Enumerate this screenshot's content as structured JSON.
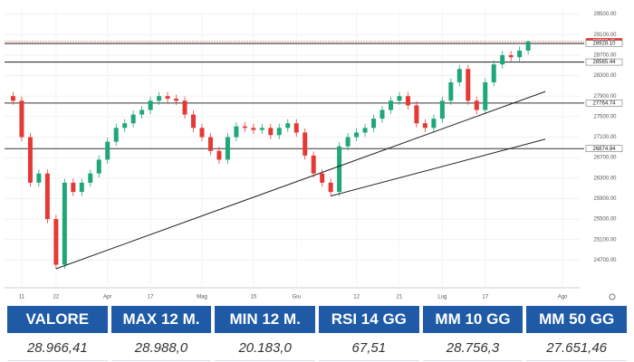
{
  "chart_data": {
    "type": "candlestick",
    "open": [
      27900,
      27810,
      27100,
      26210,
      26390,
      25500,
      24610,
      26210,
      26030,
      26210,
      26390,
      26660,
      27010,
      27280,
      27370,
      27540,
      27630,
      27810,
      27900,
      27850,
      27810,
      27540,
      27280,
      27100,
      26830,
      26660,
      27100,
      27310,
      27280,
      27240,
      27280,
      27140,
      27280,
      27370,
      27190,
      26740,
      26390,
      26210,
      26030,
      26920,
      27100,
      27190,
      27280,
      27460,
      27630,
      27810,
      27900,
      27720,
      27370,
      27280,
      27460,
      27810,
      28170,
      28430,
      27810,
      27630,
      28170,
      28520,
      28700,
      28660,
      28790
    ],
    "high": [
      27980,
      27890,
      27180,
      26470,
      26470,
      25580,
      26290,
      26290,
      26290,
      26470,
      26740,
      27090,
      27360,
      27450,
      27620,
      27710,
      27890,
      27980,
      27980,
      27930,
      27890,
      27620,
      27360,
      27180,
      26910,
      27180,
      27390,
      27390,
      27360,
      27360,
      27360,
      27360,
      27450,
      27450,
      27270,
      26820,
      26470,
      26290,
      27000,
      27180,
      27270,
      27360,
      27540,
      27710,
      27890,
      27980,
      27980,
      27800,
      27450,
      27540,
      27890,
      28250,
      28510,
      28510,
      27890,
      28250,
      28600,
      28780,
      28780,
      28870,
      28988
    ],
    "low": [
      27730,
      27020,
      26130,
      26130,
      25420,
      24530,
      24530,
      25950,
      25950,
      26130,
      26310,
      26580,
      26930,
      27200,
      27290,
      27460,
      27550,
      27730,
      27770,
      27730,
      27460,
      27200,
      27020,
      26750,
      26580,
      26580,
      27020,
      27200,
      27160,
      27160,
      27060,
      27060,
      27200,
      27110,
      26660,
      26310,
      26130,
      25950,
      25950,
      26840,
      27020,
      27110,
      27200,
      27380,
      27550,
      27730,
      27640,
      27290,
      27200,
      27200,
      27380,
      27730,
      28090,
      27730,
      27550,
      27550,
      28090,
      28440,
      28580,
      28580,
      28710
    ],
    "close": [
      27810,
      27100,
      26210,
      26390,
      25500,
      24610,
      26210,
      26030,
      26210,
      26390,
      26660,
      27010,
      27280,
      27370,
      27540,
      27630,
      27810,
      27900,
      27850,
      27810,
      27540,
      27280,
      27100,
      26830,
      26660,
      27100,
      27310,
      27280,
      27240,
      27280,
      27140,
      27280,
      27370,
      27190,
      26740,
      26390,
      26210,
      26030,
      26920,
      27100,
      27190,
      27280,
      27460,
      27630,
      27810,
      27900,
      27720,
      27370,
      27280,
      27460,
      27810,
      28170,
      28430,
      27810,
      27630,
      28170,
      28520,
      28700,
      28660,
      28790,
      28966.41
    ],
    "up_color": "#1fa67a",
    "down_color": "#e53935",
    "xlim": [
      -1,
      66
    ],
    "xticks": [
      {
        "value": 1,
        "label": "11"
      },
      {
        "value": 5,
        "label": "22"
      },
      {
        "value": 11,
        "label": "Apr"
      },
      {
        "value": 16,
        "label": "17"
      },
      {
        "value": 22,
        "label": "Mag"
      },
      {
        "value": 28,
        "label": "15"
      },
      {
        "value": 33,
        "label": "Giu"
      },
      {
        "value": 40,
        "label": "12"
      },
      {
        "value": 45,
        "label": "21"
      },
      {
        "value": 50,
        "label": "Lug"
      },
      {
        "value": 55,
        "label": "17"
      },
      {
        "value": 64,
        "label": "Ago"
      }
    ],
    "ylim": [
      24300,
      29600
    ],
    "yticks": [
      {
        "value": 29500,
        "label": "29500.00"
      },
      {
        "value": 29100,
        "label": "29100.00"
      },
      {
        "value": 28700,
        "label": "28700.00"
      },
      {
        "value": 28300,
        "label": "28300.00"
      },
      {
        "value": 27900,
        "label": "27900.00"
      },
      {
        "value": 27500,
        "label": "27500.00"
      },
      {
        "value": 27100,
        "label": "27100.00"
      },
      {
        "value": 26700,
        "label": "26700.00"
      },
      {
        "value": 26300,
        "label": "26300.00"
      },
      {
        "value": 25900,
        "label": "25900.00"
      },
      {
        "value": 25500,
        "label": "25500.00"
      },
      {
        "value": 25100,
        "label": "25100.00"
      },
      {
        "value": 24700,
        "label": "24700.00"
      }
    ],
    "levels": [
      {
        "value": 28966.41,
        "label": "28966.41",
        "color": "#e53935"
      },
      {
        "value": 28928.1,
        "label": "28928.10",
        "color": "#333333"
      },
      {
        "value": 28565.44,
        "label": "28565.44",
        "color": "#333333"
      },
      {
        "value": 27764.74,
        "label": "27764.74",
        "color": "#333333"
      },
      {
        "value": 26874.84,
        "label": "26874.84",
        "color": "#333333"
      }
    ],
    "trendlines": [
      {
        "x": [
          5,
          62
        ],
        "y": [
          24530,
          27990
        ]
      },
      {
        "x": [
          37,
          62
        ],
        "y": [
          25950,
          27060
        ]
      }
    ],
    "grid": true
  },
  "table": {
    "header": [
      "VALORE",
      "MAX 12 M.",
      "MIN 12 M.",
      "RSI 14 GG",
      "MM 10 GG",
      "MM 50 GG"
    ],
    "values": [
      "28.966,41",
      "28.988,0",
      "20.183,0",
      "67,51",
      "28.756,3",
      "27.651,46"
    ]
  }
}
